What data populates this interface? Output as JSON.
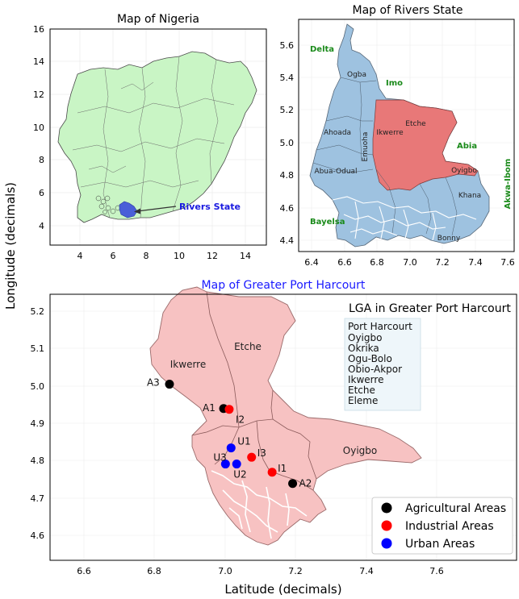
{
  "figure": {
    "ylabel": "Longitude (decimals)",
    "xlabel": "Latitude (decimals)"
  },
  "nigeria_map": {
    "title": "Map of Nigeria",
    "highlight_label": "Rivers State",
    "x_ticks": [
      "4",
      "6",
      "8",
      "10",
      "12",
      "14"
    ],
    "y_ticks": [
      "4",
      "6",
      "8",
      "10",
      "12",
      "14",
      "16"
    ],
    "colors": {
      "country_fill": "#c9f5c5",
      "highlight": "#4a5fd8",
      "label": "#1a1ae0"
    }
  },
  "rivers_map": {
    "title": "Map of Rivers State",
    "x_ticks": [
      "6.4",
      "6.6",
      "6.8",
      "7.0",
      "7.2",
      "7.4",
      "7.6"
    ],
    "y_ticks": [
      "4.4",
      "4.6",
      "4.8",
      "5.0",
      "5.2",
      "5.4",
      "5.6"
    ],
    "neighbors": [
      "Delta",
      "Imo",
      "Abia",
      "Bayelsa",
      "Akwa-Ibom"
    ],
    "lga_labels": [
      "Ogba",
      "Ahoada",
      "Emuoha",
      "Ikwerre",
      "Etche",
      "Abua-Odual",
      "Oyigbo",
      "Khana",
      "Bonny"
    ],
    "colors": {
      "state_fill": "#9ec2e0",
      "greater_ph": "#e87878",
      "neighbor_text": "#1a8a1a"
    }
  },
  "ph_map": {
    "title": "Map of Greater Port Harcourt",
    "x_ticks": [
      "6.6",
      "6.8",
      "7.0",
      "7.2",
      "7.4",
      "7.6"
    ],
    "y_ticks": [
      "4.6",
      "4.7",
      "4.8",
      "4.9",
      "5.0",
      "5.1",
      "5.2"
    ],
    "region_labels": [
      "Etche",
      "Ikwerre",
      "Oyigbo"
    ],
    "lga_box_title": "LGA in Greater Port Harcourt",
    "lga_list": [
      "Port Harcourt",
      "Oyigbo",
      "Okrika",
      "Ogu-Bolo",
      "Obio-Akpor",
      "Ikwerre",
      "Etche",
      "Eleme"
    ],
    "legend": [
      {
        "label": "Agricultural Areas",
        "color": "#000000"
      },
      {
        "label": "Industrial Areas",
        "color": "#ff0000"
      },
      {
        "label": "Urban Areas",
        "color": "#0000ff"
      }
    ],
    "colors": {
      "region_fill": "#f7c2c2",
      "title": "#1a1aff"
    }
  },
  "chart_data": {
    "type": "scatter",
    "title": "Map of Greater Port Harcourt",
    "xlabel": "Latitude (decimals)",
    "ylabel": "Longitude (decimals)",
    "xlim": [
      6.5,
      7.75
    ],
    "ylim": [
      4.53,
      5.24
    ],
    "series": [
      {
        "name": "Agricultural Areas",
        "color": "#000000",
        "points": [
          {
            "label": "A1",
            "x": 6.965,
            "y": 4.935
          },
          {
            "label": "A2",
            "x": 7.15,
            "y": 4.735
          },
          {
            "label": "A3",
            "x": 6.82,
            "y": 5.0
          }
        ]
      },
      {
        "name": "Industrial Areas",
        "color": "#ff0000",
        "points": [
          {
            "label": "I2",
            "x": 6.98,
            "y": 4.933
          },
          {
            "label": "I3",
            "x": 7.04,
            "y": 4.805
          },
          {
            "label": "I1",
            "x": 7.095,
            "y": 4.765
          }
        ]
      },
      {
        "name": "Urban Areas",
        "color": "#0000ff",
        "points": [
          {
            "label": "U1",
            "x": 6.985,
            "y": 4.83
          },
          {
            "label": "U3",
            "x": 6.97,
            "y": 4.787
          },
          {
            "label": "U2",
            "x": 7.0,
            "y": 4.787
          }
        ]
      }
    ]
  }
}
